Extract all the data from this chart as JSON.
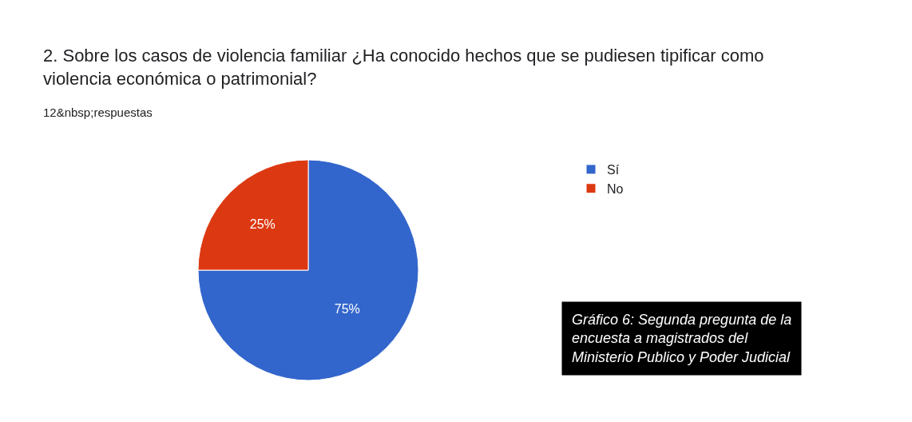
{
  "chart_data": {
    "type": "pie",
    "title": "2. Sobre los casos de violencia familiar ¿Ha conocido hechos que se pudiesen tipificar como violencia económica o patrimonial?",
    "subtitle": "12&nbsp;respuestas",
    "categories": [
      "Sí",
      "No"
    ],
    "values": [
      75,
      25
    ],
    "colors": [
      "#3366cc",
      "#dc3912"
    ],
    "value_labels": [
      "75%",
      "25%"
    ],
    "legend": "top right",
    "annotations": [
      "Gráfico 6: Segunda pregunta de la encuesta a magistrados del Ministerio Publico y Poder Judicial"
    ]
  }
}
